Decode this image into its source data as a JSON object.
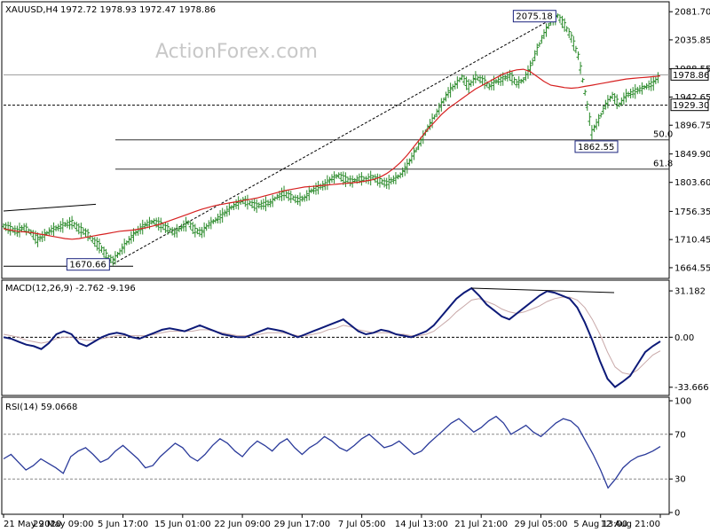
{
  "chart_data": [
    {
      "type": "ohlc",
      "header": {
        "symbol": "XAUUSD,H4",
        "ohlc": "1972.72 1978.93 1972.47 1978.86"
      },
      "watermark": "ActionForex.com",
      "ylim": [
        1650,
        2095
      ],
      "y_ticks": [
        "2081.70",
        "2035.85",
        "1988.55",
        "1942.65",
        "1896.75",
        "1849.90",
        "1803.60",
        "1756.35",
        "1710.45",
        "1664.55"
      ],
      "current_price": "1978.86",
      "support_line": "1929.30",
      "colors": {
        "price": "#2a8a2a",
        "ma": "#d62020",
        "line": "#000000",
        "box": "#1a237e"
      },
      "annotations": [
        {
          "label": "2075.18",
          "value": 2075.18
        },
        {
          "label": "1670.66",
          "value": 1670.66
        },
        {
          "label": "1862.55",
          "value": 1862.55
        }
      ],
      "fib_levels": [
        {
          "label": "50.0",
          "value": 1872.9
        },
        {
          "label": "61.8",
          "value": 1825.2
        }
      ],
      "x_tick_labels": [
        "21 May 2020",
        "29 May 09:00",
        "5 Jun 17:00",
        "15 Jun 01:00",
        "22 Jun 09:00",
        "29 Jun 17:00",
        "7 Jul 05:00",
        "14 Jul 13:00",
        "21 Jul 21:00",
        "29 Jul 05:00",
        "5 Aug 13:00",
        "12 Aug 21:00"
      ],
      "price_series": [
        1733,
        1728,
        1724,
        1730,
        1722,
        1710,
        1718,
        1726,
        1730,
        1735,
        1738,
        1728,
        1722,
        1710,
        1700,
        1685,
        1676,
        1690,
        1705,
        1718,
        1728,
        1736,
        1740,
        1734,
        1728,
        1722,
        1730,
        1738,
        1725,
        1722,
        1735,
        1742,
        1750,
        1760,
        1768,
        1774,
        1770,
        1765,
        1768,
        1770,
        1780,
        1786,
        1780,
        1775,
        1778,
        1790,
        1795,
        1800,
        1810,
        1815,
        1808,
        1805,
        1810,
        1808,
        1812,
        1806,
        1802,
        1808,
        1815,
        1830,
        1850,
        1870,
        1892,
        1910,
        1930,
        1950,
        1962,
        1975,
        1960,
        1975,
        1970,
        1960,
        1968,
        1972,
        1978,
        1965,
        1970,
        1990,
        2020,
        2045,
        2065,
        2075,
        2060,
        2040,
        2010,
        1950,
        1885,
        1905,
        1930,
        1945,
        1930,
        1945,
        1950,
        1955,
        1960,
        1965,
        1978.86
      ],
      "ma_series": [
        1728,
        1726,
        1724,
        1723,
        1722,
        1720,
        1718,
        1716,
        1714,
        1712,
        1711,
        1712,
        1714,
        1716,
        1718,
        1720,
        1722,
        1724,
        1725,
        1726,
        1728,
        1730,
        1733,
        1736,
        1740,
        1744,
        1748,
        1752,
        1756,
        1760,
        1763,
        1766,
        1768,
        1770,
        1772,
        1774,
        1776,
        1778,
        1781,
        1784,
        1787,
        1790,
        1792,
        1794,
        1796,
        1797,
        1798,
        1799,
        1800,
        1801,
        1802,
        1803,
        1804,
        1806,
        1808,
        1812,
        1818,
        1826,
        1836,
        1848,
        1862,
        1876,
        1890,
        1902,
        1914,
        1924,
        1932,
        1940,
        1948,
        1956,
        1962,
        1968,
        1974,
        1980,
        1984,
        1987,
        1988,
        1984,
        1976,
        1968,
        1962,
        1960,
        1958,
        1957,
        1958,
        1960,
        1962,
        1964,
        1966,
        1968,
        1970,
        1972,
        1973,
        1974,
        1975,
        1976,
        1977
      ]
    },
    {
      "type": "line",
      "title": "MACD(12,26,9) -2.762 -9.196",
      "ylim": [
        -38,
        36
      ],
      "y_ticks": [
        "31.182",
        "0.00",
        "-33.666"
      ],
      "zero_label": "0.00",
      "colors": {
        "macd": "#0d1a78",
        "signal": "#c8a8a8"
      },
      "macd_series": [
        0,
        -1,
        -3,
        -5,
        -6,
        -8,
        -4,
        2,
        4,
        2,
        -4,
        -6,
        -3,
        0,
        2,
        3,
        2,
        0,
        -1,
        1,
        3,
        5,
        6,
        5,
        4,
        6,
        8,
        6,
        4,
        2,
        1,
        0,
        0,
        2,
        4,
        6,
        5,
        4,
        2,
        0,
        2,
        4,
        6,
        8,
        10,
        12,
        8,
        4,
        2,
        3,
        5,
        4,
        2,
        1,
        0,
        2,
        4,
        8,
        14,
        20,
        26,
        30,
        33,
        28,
        22,
        18,
        14,
        12,
        16,
        20,
        24,
        28,
        31,
        30,
        28,
        26,
        20,
        10,
        -2,
        -16,
        -28,
        -33.5,
        -30,
        -26,
        -18,
        -10,
        -6,
        -2.762
      ],
      "signal_series": [
        2,
        1,
        0,
        -2,
        -3,
        -4,
        -3,
        -1,
        0,
        0,
        -1,
        -2,
        -2,
        -1,
        0,
        1,
        1,
        1,
        1,
        1,
        2,
        3,
        4,
        4,
        4,
        4,
        5,
        5,
        4,
        3,
        2,
        1,
        1,
        1,
        2,
        3,
        3,
        3,
        2,
        1,
        1,
        2,
        3,
        5,
        6,
        8,
        7,
        5,
        4,
        3,
        3,
        3,
        2,
        2,
        1,
        1,
        2,
        4,
        8,
        12,
        17,
        21,
        25,
        26,
        24,
        22,
        19,
        17,
        16,
        17,
        19,
        21,
        24,
        26,
        27,
        27,
        25,
        20,
        12,
        2,
        -10,
        -20,
        -24,
        -25,
        -22,
        -17,
        -12,
        -9.196
      ]
    },
    {
      "type": "line",
      "title": "RSI(14) 59.0668",
      "ylim": [
        0,
        100
      ],
      "y_ticks": [
        "100",
        "70",
        "30",
        "0"
      ],
      "levels": [
        70,
        30
      ],
      "colors": {
        "rsi": "#2a3a9a"
      },
      "rsi_series": [
        48,
        52,
        45,
        38,
        42,
        48,
        44,
        40,
        35,
        50,
        55,
        58,
        52,
        45,
        48,
        55,
        60,
        54,
        48,
        40,
        42,
        50,
        56,
        62,
        58,
        50,
        46,
        52,
        60,
        66,
        62,
        55,
        50,
        58,
        64,
        60,
        55,
        62,
        66,
        58,
        52,
        58,
        62,
        68,
        64,
        58,
        55,
        60,
        66,
        70,
        64,
        58,
        60,
        64,
        58,
        52,
        55,
        62,
        68,
        74,
        80,
        84,
        78,
        72,
        76,
        82,
        86,
        80,
        70,
        74,
        78,
        72,
        68,
        74,
        80,
        84,
        82,
        76,
        64,
        52,
        38,
        22,
        30,
        40,
        46,
        50,
        52,
        55,
        59.07
      ]
    }
  ]
}
